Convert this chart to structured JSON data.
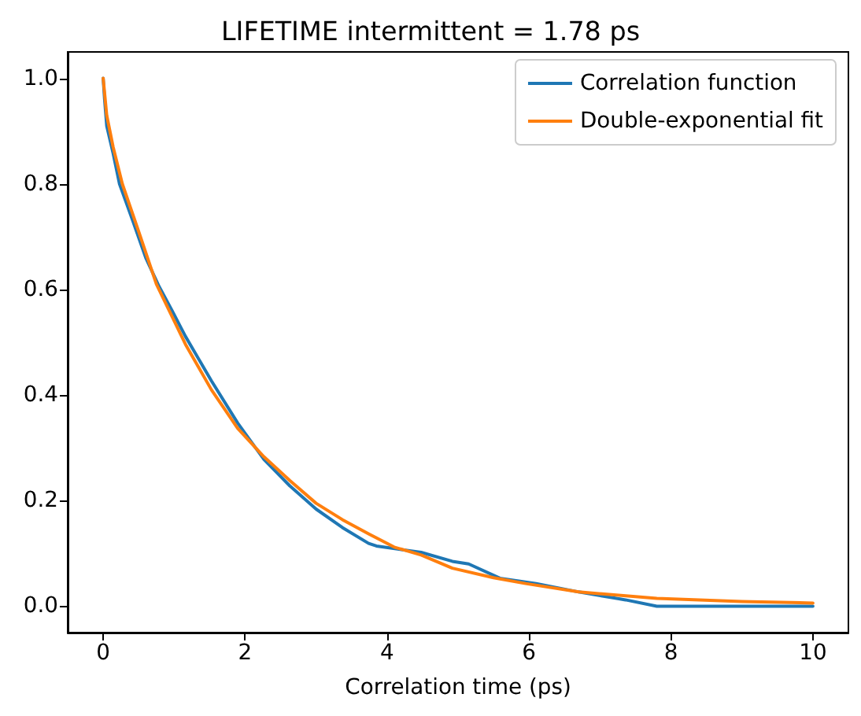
{
  "chart_data": {
    "type": "line",
    "title": "LIFETIME intermittent = 1.78 ps",
    "xlabel": "Correlation time (ps)",
    "series": [
      {
        "name": "Correlation function",
        "color": "#1f77b4",
        "x": [
          0,
          0.02,
          0.05,
          0.14,
          0.23,
          0.42,
          0.6,
          0.79,
          0.97,
          1.16,
          1.525,
          1.895,
          2.265,
          2.63,
          3.0,
          3.37,
          3.74,
          3.85,
          4.11,
          4.48,
          4.92,
          5.15,
          5.59,
          6.1,
          6.7,
          7.36,
          7.8,
          10
        ],
        "values": [
          1.0,
          0.96,
          0.91,
          0.858,
          0.8,
          0.729,
          0.66,
          0.605,
          0.56,
          0.511,
          0.427,
          0.347,
          0.278,
          0.228,
          0.184,
          0.149,
          0.119,
          0.114,
          0.109,
          0.102,
          0.085,
          0.08,
          0.053,
          0.043,
          0.027,
          0.012,
          0,
          0
        ]
      },
      {
        "name": "Double-exponential fit",
        "color": "#ff7f0e",
        "x": [
          0,
          0.05,
          0.14,
          0.27,
          0.5,
          0.75,
          1.16,
          1.525,
          1.895,
          2.265,
          2.63,
          3.0,
          3.37,
          3.74,
          4.1,
          4.48,
          4.92,
          5.5,
          5.95,
          6.7,
          7.8,
          9,
          10
        ],
        "values": [
          1.0,
          0.93,
          0.87,
          0.8,
          0.71,
          0.61,
          0.496,
          0.41,
          0.337,
          0.283,
          0.238,
          0.195,
          0.164,
          0.137,
          0.112,
          0.097,
          0.072,
          0.054,
          0.043,
          0.027,
          0.015,
          0.009,
          0.006
        ]
      }
    ],
    "xlim": [
      -0.5,
      10.5
    ],
    "xticks": [
      0,
      2,
      4,
      6,
      8,
      10
    ],
    "ylim": [
      -0.05,
      1.05
    ],
    "yticks": [
      {
        "value": 0,
        "label": "0.0"
      },
      {
        "value": 0.2,
        "label": "0.2"
      },
      {
        "value": 0.4,
        "label": "0.4"
      },
      {
        "value": 0.6,
        "label": "0.6"
      },
      {
        "value": 0.8,
        "label": "0.8"
      },
      {
        "value": 1.0,
        "label": "1.0"
      }
    ],
    "legend": "top right",
    "marker": "none",
    "line_style": "solid"
  }
}
